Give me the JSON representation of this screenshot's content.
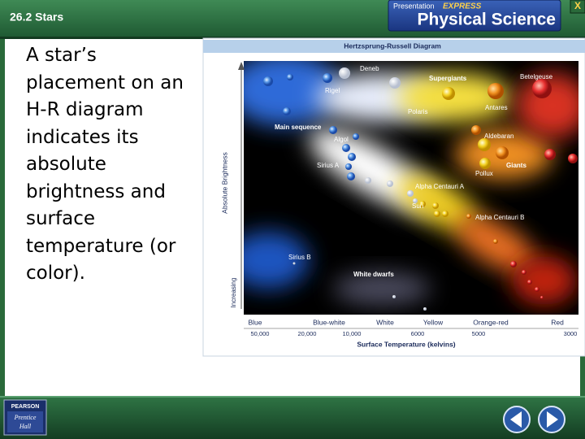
{
  "header": {
    "section": "26.2 Stars",
    "brand_small": "Presentation",
    "brand_express": "EXPRESS",
    "brand_title": "Physical Science",
    "close": "X"
  },
  "body": {
    "text": "A star’s placement on an H-R diagram indicates its absolute brightness and surface temperature (or color)."
  },
  "diagram": {
    "title": "Hertzsprung-Russell Diagram",
    "star_labels": [
      "Deneb",
      "Rigel",
      "Supergiants",
      "Betelgeuse",
      "Polaris",
      "Antares",
      "Main sequence",
      "Algol",
      "Aldebaran",
      "Sirius A",
      "Giants",
      "Pollux",
      "Alpha Centauri A",
      "Sun",
      "Alpha Centauri B",
      "Sirius B",
      "White dwarfs"
    ],
    "y_axis_label": "Absolute Brightness",
    "y_axis_note": "Increasing",
    "color_labels": [
      "Blue",
      "Blue-white",
      "White",
      "Yellow",
      "Orange-red",
      "Red"
    ],
    "temperature_labels": [
      "50,000",
      "20,000",
      "10,000",
      "6000",
      "5000",
      "3000"
    ],
    "x_axis_label": "Surface Temperature (kelvins)"
  },
  "footer": {
    "publisher": "PEARSON",
    "imprint_1": "Prentice",
    "imprint_2": "Hall"
  }
}
